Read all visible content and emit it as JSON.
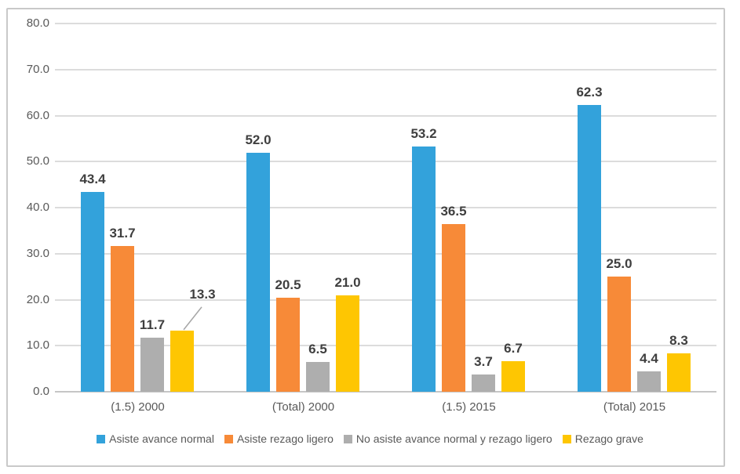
{
  "chart_data": {
    "type": "bar",
    "categories": [
      "(1.5) 2000",
      "(Total) 2000",
      "(1.5) 2015",
      "(Total) 2015"
    ],
    "series": [
      {
        "name": "Asiste avance normal",
        "color": "#33a2db",
        "values": [
          43.4,
          52.0,
          53.2,
          62.3
        ]
      },
      {
        "name": "Asiste rezago ligero",
        "color": "#f78a38",
        "values": [
          31.7,
          20.5,
          36.5,
          25.0
        ]
      },
      {
        "name": "No asiste avance normal y rezago ligero",
        "color": "#aeaeae",
        "values": [
          11.7,
          6.5,
          3.7,
          4.4
        ]
      },
      {
        "name": "Rezago grave",
        "color": "#fec602",
        "values": [
          13.3,
          21.0,
          6.7,
          8.3
        ]
      }
    ],
    "title": "",
    "xlabel": "",
    "ylabel": "",
    "ylim": [
      0,
      80
    ],
    "ytick_step": 10,
    "ytick_labels": [
      "0.0",
      "10.0",
      "20.0",
      "30.0",
      "40.0",
      "50.0",
      "60.0",
      "70.0",
      "80.0"
    ],
    "grid": true,
    "legend_position": "bottom",
    "data_labels": true,
    "data_label_decimals": 1,
    "callout": {
      "group": 0,
      "series": 3,
      "dx": 26,
      "dy": -30,
      "line_color": "#a6a6a6"
    }
  },
  "colors": {
    "figure_border": "#c9c9c9",
    "gridline": "#dcdcdc",
    "axis_line": "#c6c6c6",
    "tick_text": "#595959",
    "data_label_text": "#3f3f3f"
  }
}
